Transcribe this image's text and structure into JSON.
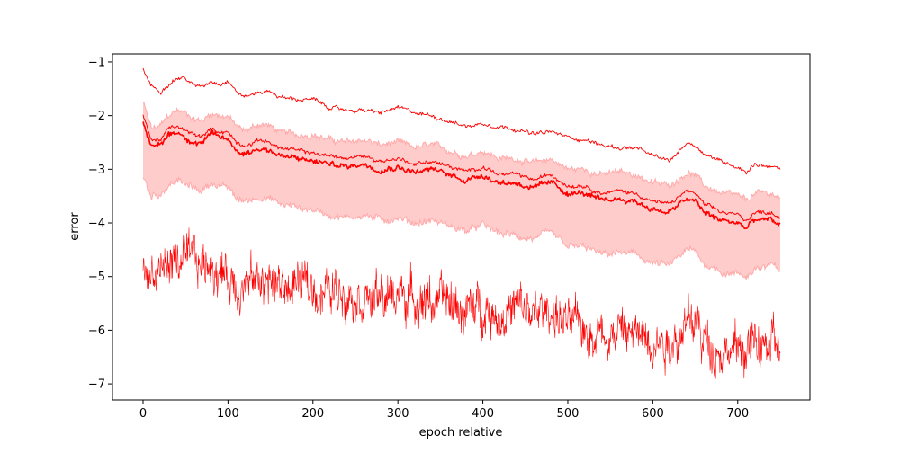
{
  "chart_data": {
    "type": "line",
    "title": "",
    "xlabel": "epoch relative",
    "ylabel": "error",
    "xlim": [
      -36,
      785
    ],
    "ylim": [
      -7.3,
      -0.85
    ],
    "xticks": [
      0,
      100,
      200,
      300,
      400,
      500,
      600,
      700
    ],
    "yticks": [
      -1,
      -2,
      -3,
      -4,
      -5,
      -6,
      -7
    ],
    "grid": false,
    "legend": "none",
    "colors": {
      "line": "#ff0000",
      "band_fill": "#ffcccc",
      "band_edge": "#ffaaaa"
    },
    "series": [
      {
        "role": "upper",
        "x": [
          0,
          10,
          20,
          30,
          40,
          50,
          60,
          70,
          80,
          90,
          100,
          110,
          120,
          130,
          140,
          150,
          160,
          180,
          200,
          220,
          240,
          260,
          280,
          300,
          320,
          340,
          360,
          380,
          400,
          420,
          440,
          460,
          480,
          500,
          520,
          540,
          560,
          580,
          600,
          620,
          640,
          650,
          660,
          680,
          700,
          710,
          720,
          740,
          750
        ],
        "y": [
          -1.15,
          -1.45,
          -1.55,
          -1.4,
          -1.3,
          -1.3,
          -1.45,
          -1.45,
          -1.35,
          -1.4,
          -1.35,
          -1.55,
          -1.65,
          -1.6,
          -1.55,
          -1.55,
          -1.65,
          -1.7,
          -1.7,
          -1.85,
          -1.9,
          -1.9,
          -1.95,
          -1.85,
          -1.95,
          -2.0,
          -2.1,
          -2.2,
          -2.15,
          -2.2,
          -2.25,
          -2.35,
          -2.3,
          -2.4,
          -2.45,
          -2.55,
          -2.6,
          -2.6,
          -2.75,
          -2.85,
          -2.5,
          -2.55,
          -2.7,
          -2.85,
          -2.95,
          -3.05,
          -2.9,
          -2.95,
          -3.0
        ]
      },
      {
        "role": "median",
        "x": [
          0,
          10,
          20,
          30,
          40,
          50,
          60,
          70,
          80,
          90,
          100,
          110,
          120,
          130,
          140,
          150,
          160,
          180,
          200,
          220,
          240,
          260,
          280,
          300,
          320,
          340,
          360,
          380,
          400,
          420,
          440,
          460,
          480,
          500,
          520,
          540,
          560,
          580,
          600,
          620,
          640,
          650,
          660,
          680,
          700,
          710,
          720,
          740,
          750
        ],
        "y": [
          -2.1,
          -2.6,
          -2.55,
          -2.35,
          -2.3,
          -2.4,
          -2.5,
          -2.5,
          -2.35,
          -2.4,
          -2.45,
          -2.65,
          -2.7,
          -2.65,
          -2.6,
          -2.65,
          -2.75,
          -2.8,
          -2.85,
          -2.9,
          -2.95,
          -2.9,
          -3.0,
          -2.95,
          -3.05,
          -3.0,
          -3.1,
          -3.2,
          -3.1,
          -3.25,
          -3.25,
          -3.35,
          -3.25,
          -3.45,
          -3.45,
          -3.6,
          -3.55,
          -3.6,
          -3.75,
          -3.8,
          -3.55,
          -3.6,
          -3.8,
          -3.95,
          -4.0,
          -4.1,
          -3.95,
          -3.95,
          -4.05
        ]
      },
      {
        "role": "mean",
        "x": [
          0,
          10,
          20,
          30,
          40,
          50,
          60,
          70,
          80,
          90,
          100,
          110,
          120,
          130,
          140,
          150,
          160,
          180,
          200,
          220,
          240,
          260,
          280,
          300,
          320,
          340,
          360,
          380,
          400,
          420,
          440,
          460,
          480,
          500,
          520,
          540,
          560,
          580,
          600,
          620,
          640,
          650,
          660,
          680,
          700,
          710,
          720,
          740,
          750
        ],
        "y": [
          -2.0,
          -2.45,
          -2.45,
          -2.25,
          -2.2,
          -2.3,
          -2.35,
          -2.4,
          -2.25,
          -2.3,
          -2.3,
          -2.5,
          -2.55,
          -2.5,
          -2.45,
          -2.5,
          -2.6,
          -2.65,
          -2.7,
          -2.75,
          -2.8,
          -2.75,
          -2.85,
          -2.8,
          -2.9,
          -2.85,
          -2.95,
          -3.05,
          -2.95,
          -3.1,
          -3.1,
          -3.2,
          -3.1,
          -3.3,
          -3.3,
          -3.45,
          -3.4,
          -3.45,
          -3.6,
          -3.65,
          -3.4,
          -3.45,
          -3.65,
          -3.8,
          -3.85,
          -3.95,
          -3.8,
          -3.8,
          -3.9
        ]
      },
      {
        "role": "band-top",
        "x": [
          0,
          10,
          20,
          30,
          40,
          50,
          60,
          70,
          80,
          90,
          100,
          110,
          120,
          130,
          140,
          150,
          160,
          180,
          200,
          220,
          240,
          260,
          280,
          300,
          320,
          340,
          360,
          380,
          400,
          420,
          440,
          460,
          480,
          500,
          520,
          540,
          560,
          580,
          600,
          620,
          640,
          650,
          660,
          680,
          700,
          710,
          720,
          740,
          750
        ],
        "y": [
          -1.75,
          -2.25,
          -2.2,
          -2.0,
          -1.9,
          -1.95,
          -2.05,
          -2.1,
          -1.95,
          -2.0,
          -2.0,
          -2.2,
          -2.3,
          -2.2,
          -2.15,
          -2.2,
          -2.3,
          -2.35,
          -2.35,
          -2.45,
          -2.5,
          -2.45,
          -2.55,
          -2.5,
          -2.6,
          -2.55,
          -2.65,
          -2.75,
          -2.65,
          -2.8,
          -2.8,
          -2.9,
          -2.8,
          -3.0,
          -3.0,
          -3.1,
          -3.05,
          -3.1,
          -3.25,
          -3.3,
          -3.05,
          -3.1,
          -3.3,
          -3.45,
          -3.5,
          -3.6,
          -3.45,
          -3.45,
          -3.55
        ]
      },
      {
        "role": "band-bottom",
        "x": [
          0,
          10,
          20,
          30,
          40,
          50,
          60,
          70,
          80,
          90,
          100,
          110,
          120,
          130,
          140,
          150,
          160,
          180,
          200,
          220,
          240,
          260,
          280,
          300,
          320,
          340,
          360,
          380,
          400,
          420,
          440,
          460,
          480,
          500,
          520,
          540,
          560,
          580,
          600,
          620,
          640,
          650,
          660,
          680,
          700,
          710,
          720,
          740,
          750
        ],
        "y": [
          -3.15,
          -3.5,
          -3.45,
          -3.3,
          -3.2,
          -3.3,
          -3.35,
          -3.4,
          -3.25,
          -3.3,
          -3.35,
          -3.55,
          -3.6,
          -3.55,
          -3.5,
          -3.55,
          -3.65,
          -3.7,
          -3.75,
          -3.85,
          -3.9,
          -3.85,
          -3.95,
          -3.9,
          -4.0,
          -3.95,
          -4.05,
          -4.15,
          -4.05,
          -4.2,
          -4.25,
          -4.3,
          -4.2,
          -4.45,
          -4.45,
          -4.6,
          -4.55,
          -4.6,
          -4.75,
          -4.8,
          -4.5,
          -4.55,
          -4.75,
          -4.9,
          -4.95,
          -5.0,
          -4.85,
          -4.8,
          -4.9
        ]
      },
      {
        "role": "lower-noisy",
        "x": [
          0,
          10,
          20,
          30,
          40,
          50,
          60,
          70,
          80,
          90,
          100,
          110,
          120,
          130,
          140,
          150,
          160,
          180,
          200,
          220,
          240,
          260,
          280,
          300,
          320,
          340,
          360,
          380,
          400,
          420,
          440,
          460,
          480,
          500,
          520,
          540,
          560,
          580,
          600,
          620,
          640,
          650,
          660,
          680,
          700,
          710,
          720,
          740,
          750
        ],
        "y": [
          -4.8,
          -4.95,
          -4.9,
          -4.75,
          -4.7,
          -4.8,
          -4.75,
          -4.8,
          -4.7,
          -4.9,
          -5.0,
          -5.1,
          -5.15,
          -5.1,
          -5.05,
          -5.1,
          -5.2,
          -5.15,
          -5.2,
          -5.3,
          -5.2,
          -5.35,
          -5.45,
          -5.3,
          -5.4,
          -5.45,
          -5.5,
          -5.65,
          -5.55,
          -5.7,
          -5.6,
          -5.75,
          -5.6,
          -5.9,
          -5.95,
          -6.05,
          -6.0,
          -6.1,
          -6.1,
          -6.2,
          -5.9,
          -5.85,
          -6.2,
          -6.35,
          -6.4,
          -6.35,
          -6.3,
          -6.3,
          -6.35
        ]
      }
    ]
  }
}
